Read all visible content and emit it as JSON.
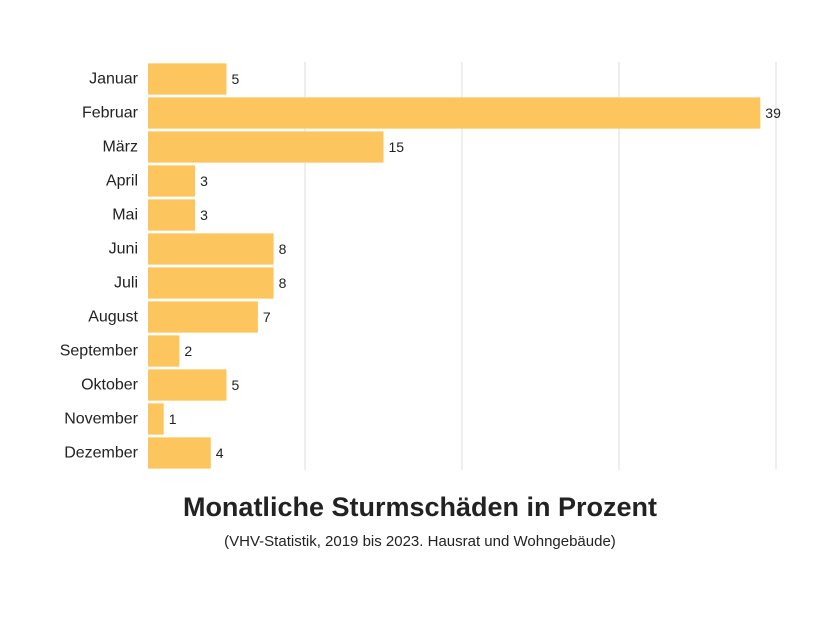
{
  "chart_data": {
    "type": "bar",
    "orientation": "horizontal",
    "title": "Monatliche Sturmschäden in Prozent",
    "subtitle": "(VHV-Statistik, 2019 bis 2023. Hausrat und Wohngebäude)",
    "xlabel": "",
    "ylabel": "",
    "categories": [
      "Januar",
      "Februar",
      "März",
      "April",
      "Mai",
      "Juni",
      "Juli",
      "August",
      "September",
      "Oktober",
      "November",
      "Dezember"
    ],
    "values": [
      5,
      39,
      15,
      3,
      3,
      8,
      8,
      7,
      2,
      5,
      1,
      4
    ],
    "xlim": [
      0,
      40
    ],
    "grid": true,
    "colors": {
      "bar": "#FDC55E",
      "grid": "#dddddd",
      "text": "#222222"
    }
  }
}
